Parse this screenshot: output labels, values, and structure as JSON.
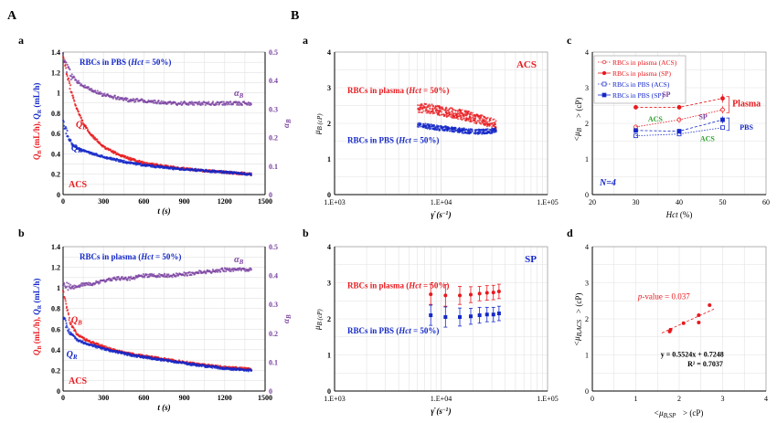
{
  "figure": {
    "section_labels": [
      "A",
      "B"
    ],
    "colors": {
      "red": "#e8191e",
      "blue": "#1428c8",
      "purple": "#7a3fa0",
      "grid": "#d0d0d0",
      "axis": "#000000"
    }
  },
  "chart_data": [
    {
      "id": "A-a",
      "type": "scatter",
      "panel_label": "a",
      "title": "RBCs in PBS (Hct = 50%)",
      "title_parts": [
        "RBCs in PBS (",
        "Hct",
        " = 50%)"
      ],
      "xlabel": "t (s)",
      "ylabel_left": "QB (mL/h), QR (mL/h)",
      "ylabel_right": "αB",
      "xlim": [
        0,
        1500
      ],
      "ylim_left": [
        0,
        1.4
      ],
      "ylim_right": [
        0,
        0.5
      ],
      "xticks": [
        0,
        300,
        600,
        900,
        1200,
        1500
      ],
      "yticks_left": [
        0,
        0.2,
        0.4,
        0.6,
        0.8,
        1.0,
        1.2,
        1.4
      ],
      "yticks_right": [
        0,
        0.1,
        0.2,
        0.3,
        0.4,
        0.5
      ],
      "corner_label": "ACS",
      "series": [
        {
          "name": "QB",
          "axis": "left",
          "color": "#e8191e",
          "x": [
            0,
            30,
            60,
            100,
            150,
            200,
            300,
            400,
            500,
            600,
            800,
            1000,
            1200,
            1400
          ],
          "values": [
            1.36,
            1.18,
            1.02,
            0.85,
            0.7,
            0.6,
            0.47,
            0.4,
            0.35,
            0.31,
            0.27,
            0.24,
            0.22,
            0.2
          ]
        },
        {
          "name": "QR",
          "axis": "left",
          "color": "#1428c8",
          "x": [
            0,
            30,
            60,
            100,
            150,
            200,
            300,
            400,
            500,
            600,
            800,
            1000,
            1200,
            1400
          ],
          "values": [
            0.72,
            0.6,
            0.5,
            0.46,
            0.43,
            0.41,
            0.37,
            0.34,
            0.31,
            0.29,
            0.26,
            0.24,
            0.22,
            0.2
          ]
        },
        {
          "name": "αB",
          "axis": "right",
          "color": "#7a3fa0",
          "x": [
            0,
            30,
            60,
            100,
            150,
            200,
            300,
            400,
            500,
            600,
            800,
            1000,
            1200,
            1400
          ],
          "values": [
            0.48,
            0.44,
            0.42,
            0.4,
            0.38,
            0.37,
            0.35,
            0.34,
            0.33,
            0.33,
            0.32,
            0.32,
            0.32,
            0.32
          ]
        }
      ],
      "annotations": [
        {
          "text": "QB",
          "color": "#e8191e",
          "x": 95,
          "y": 0.66
        },
        {
          "text": "QR",
          "color": "#1428c8",
          "x": 60,
          "y": 0.43
        },
        {
          "text": "αB",
          "color": "#7a3fa0",
          "x": 1270,
          "y": 0.97
        }
      ]
    },
    {
      "id": "A-b",
      "type": "scatter",
      "panel_label": "b",
      "title": "RBCs in plasma (Hct = 50%)",
      "title_parts": [
        "RBCs in plasma (",
        "Hct",
        " = 50%)"
      ],
      "xlabel": "t (s)",
      "ylabel_left": "QB (mL/h), QR (mL/h)",
      "ylabel_right": "αB",
      "xlim": [
        0,
        1500
      ],
      "ylim_left": [
        0,
        1.4
      ],
      "ylim_right": [
        0,
        0.5
      ],
      "xticks": [
        0,
        300,
        600,
        900,
        1200,
        1500
      ],
      "yticks_left": [
        0,
        0.2,
        0.4,
        0.6,
        0.8,
        1.0,
        1.2,
        1.4
      ],
      "yticks_right": [
        0,
        0.1,
        0.2,
        0.3,
        0.4,
        0.5
      ],
      "corner_label": "ACS",
      "series": [
        {
          "name": "QB",
          "axis": "left",
          "color": "#e8191e",
          "x": [
            0,
            30,
            60,
            100,
            150,
            200,
            300,
            400,
            500,
            600,
            800,
            1000,
            1200,
            1400
          ],
          "values": [
            0.95,
            0.78,
            0.64,
            0.56,
            0.51,
            0.48,
            0.43,
            0.39,
            0.36,
            0.34,
            0.3,
            0.26,
            0.23,
            0.21
          ]
        },
        {
          "name": "QR",
          "axis": "left",
          "color": "#1428c8",
          "x": [
            0,
            30,
            60,
            100,
            150,
            200,
            300,
            400,
            500,
            600,
            800,
            1000,
            1200,
            1400
          ],
          "values": [
            0.72,
            0.62,
            0.56,
            0.5,
            0.47,
            0.45,
            0.41,
            0.38,
            0.35,
            0.33,
            0.29,
            0.25,
            0.22,
            0.2
          ]
        },
        {
          "name": "αB",
          "axis": "right",
          "color": "#7a3fa0",
          "x": [
            0,
            30,
            60,
            100,
            150,
            200,
            300,
            400,
            500,
            600,
            800,
            1000,
            1200,
            1400
          ],
          "values": [
            0.37,
            0.36,
            0.36,
            0.36,
            0.37,
            0.37,
            0.38,
            0.39,
            0.39,
            0.4,
            0.4,
            0.41,
            0.42,
            0.42
          ]
        }
      ],
      "annotations": [
        {
          "text": "QB",
          "color": "#e8191e",
          "x": 60,
          "y": 0.66
        },
        {
          "text": "QR",
          "color": "#1428c8",
          "x": 25,
          "y": 0.33
        },
        {
          "text": "αB",
          "color": "#7a3fa0",
          "x": 1270,
          "y": 1.25
        }
      ]
    },
    {
      "id": "B-a",
      "type": "scatter",
      "panel_label": "a",
      "title": "ACS",
      "xlabel": "γ̇ (s−1)",
      "ylabel": "μB (cP)",
      "xscale": "log",
      "xlim": [
        1000,
        100000
      ],
      "ylim": [
        0,
        4
      ],
      "xtick_labels": [
        "1.E+03",
        "1.E+04",
        "1.E+05"
      ],
      "yticks": [
        0,
        1,
        2,
        3,
        4
      ],
      "series": [
        {
          "name": "RBCs in plasma (Hct = 50%)",
          "name_parts": [
            "RBCs in plasma (",
            "Hct",
            " = 50%)"
          ],
          "color": "#e8191e",
          "x": [
            6000,
            7000,
            8000,
            9000,
            10000,
            12000,
            15000,
            18000,
            22000,
            27000,
            33000
          ],
          "values": [
            2.45,
            2.42,
            2.4,
            2.38,
            2.35,
            2.3,
            2.25,
            2.2,
            2.12,
            2.05,
            1.95
          ]
        },
        {
          "name": "RBCs in PBS (Hct = 50%)",
          "name_parts": [
            "RBCs in PBS (",
            "Hct",
            " = 50%)"
          ],
          "color": "#1428c8",
          "x": [
            6000,
            7000,
            8000,
            9000,
            10000,
            12000,
            15000,
            18000,
            22000,
            27000,
            33000
          ],
          "values": [
            1.95,
            1.93,
            1.9,
            1.88,
            1.86,
            1.84,
            1.8,
            1.78,
            1.76,
            1.78,
            1.8
          ]
        }
      ]
    },
    {
      "id": "B-b",
      "type": "scatter",
      "panel_label": "b",
      "title": "SP",
      "xlabel": "γ̇ (s−1)",
      "ylabel": "μB (cP)",
      "xscale": "log",
      "xlim": [
        1000,
        100000
      ],
      "ylim": [
        0,
        4
      ],
      "xtick_labels": [
        "1.E+03",
        "1.E+04",
        "1.E+05"
      ],
      "yticks": [
        0,
        1,
        2,
        3,
        4
      ],
      "series": [
        {
          "name": "RBCs in plasma (Hct = 50%)",
          "name_parts": [
            "RBCs in plasma (",
            "Hct",
            " = 50%)"
          ],
          "color": "#e8191e",
          "x": [
            8000,
            11000,
            15000,
            19000,
            23000,
            27000,
            31000,
            35000
          ],
          "values": [
            2.68,
            2.65,
            2.65,
            2.67,
            2.7,
            2.72,
            2.73,
            2.76
          ],
          "errors": [
            0.28,
            0.3,
            0.25,
            0.22,
            0.2,
            0.2,
            0.2,
            0.2
          ]
        },
        {
          "name": "RBCs in PBS (Hct = 50%)",
          "name_parts": [
            "RBCs in PBS (",
            "Hct",
            " = 50%)"
          ],
          "color": "#1428c8",
          "x": [
            8000,
            11000,
            15000,
            19000,
            23000,
            27000,
            31000,
            35000
          ],
          "values": [
            2.1,
            2.05,
            2.05,
            2.07,
            2.1,
            2.12,
            2.12,
            2.15
          ],
          "errors": [
            0.28,
            0.28,
            0.25,
            0.22,
            0.22,
            0.2,
            0.2,
            0.2
          ]
        }
      ]
    },
    {
      "id": "B-c",
      "type": "scatter",
      "panel_label": "c",
      "xlabel": "Hct (%)",
      "ylabel": "<μB> (cP)",
      "xlim": [
        20,
        60
      ],
      "ylim": [
        0,
        4
      ],
      "xticks": [
        20,
        30,
        40,
        50,
        60
      ],
      "yticks": [
        0,
        1,
        2,
        3,
        4
      ],
      "legend": [
        "RBCs in plasma (ACS)",
        "RBCs in plasma (SP)",
        "RBCs in PBS (ACS)",
        "RBCs in PBS (SP)"
      ],
      "n_label": "N=4",
      "series": [
        {
          "name": "RBCs in plasma (ACS)",
          "color": "#e8191e",
          "marker": "open",
          "x": [
            30,
            40,
            50
          ],
          "values": [
            1.9,
            2.1,
            2.38
          ],
          "errors": [
            0.06,
            0.08,
            0.1
          ]
        },
        {
          "name": "RBCs in plasma (SP)",
          "color": "#e8191e",
          "marker": "filled",
          "x": [
            30,
            40,
            50
          ],
          "values": [
            2.45,
            2.45,
            2.7
          ],
          "errors": [
            0.05,
            0.06,
            0.12
          ]
        },
        {
          "name": "RBCs in PBS (ACS)",
          "color": "#1428c8",
          "marker": "open",
          "x": [
            30,
            40,
            50
          ],
          "values": [
            1.65,
            1.7,
            1.88
          ],
          "errors": [
            0.05,
            0.05,
            0.06
          ]
        },
        {
          "name": "RBCs in PBS (SP)",
          "color": "#1428c8",
          "marker": "filled",
          "x": [
            30,
            40,
            50
          ],
          "values": [
            1.8,
            1.78,
            2.1
          ],
          "errors": [
            0.06,
            0.06,
            0.1
          ]
        }
      ],
      "annotations": [
        {
          "text": "SP",
          "color": "#7a3fa0",
          "x": 37,
          "y": 2.75
        },
        {
          "text": "ACS",
          "color": "#2aa02a",
          "x": 34.5,
          "y": 2.05
        },
        {
          "text": "Plasma",
          "color": "#e8191e",
          "x": 55.5,
          "y": 2.48
        },
        {
          "text": "SP",
          "color": "#7a3fa0",
          "x": 45.5,
          "y": 2.12
        },
        {
          "text": "ACS",
          "color": "#2aa02a",
          "x": 46.5,
          "y": 1.5
        },
        {
          "text": "PBS",
          "color": "#1428c8",
          "x": 55.5,
          "y": 1.82
        }
      ]
    },
    {
      "id": "B-d",
      "type": "scatter",
      "panel_label": "d",
      "xlabel": "<μB,SP> (cP)",
      "ylabel": "<μB,ACS> (cP)",
      "xlim": [
        0,
        4
      ],
      "ylim": [
        0,
        4
      ],
      "xticks": [
        0,
        1,
        2,
        3,
        4
      ],
      "yticks": [
        0,
        1,
        2,
        3,
        4
      ],
      "series": [
        {
          "name": "",
          "color": "#e8191e",
          "x": [
            1.78,
            1.8,
            2.1,
            2.45,
            2.45,
            2.7
          ],
          "values": [
            1.65,
            1.7,
            1.88,
            1.9,
            2.1,
            2.38
          ]
        }
      ],
      "fit": {
        "slope": 0.5524,
        "intercept": 0.7248,
        "x_range": [
          1.6,
          2.8
        ]
      },
      "annotations": [
        {
          "text": "p-value = 0.037",
          "color": "#e8191e",
          "x": 1.05,
          "y": 2.55
        },
        {
          "text": "y = 0.5524x + 0.7248",
          "color": "#000000",
          "x": 2.3,
          "y": 0.95
        },
        {
          "text": "R² = 0.7037",
          "color": "#000000",
          "x": 2.6,
          "y": 0.68
        }
      ]
    }
  ]
}
